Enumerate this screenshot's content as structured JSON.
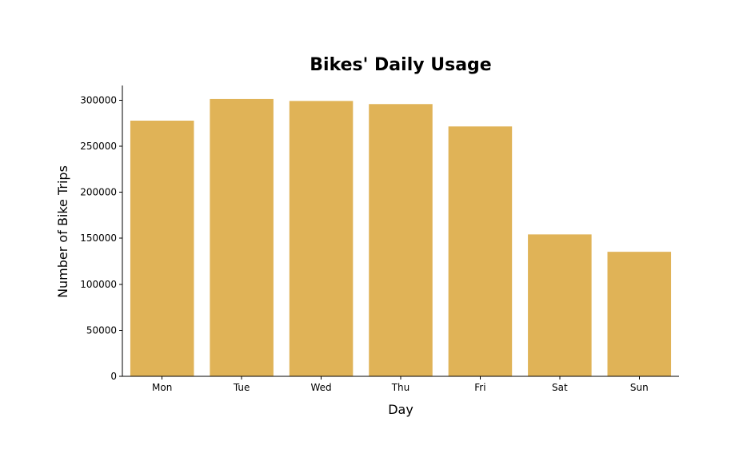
{
  "chart_data": {
    "type": "bar",
    "title": "Bikes' Daily Usage",
    "xlabel": "Day",
    "ylabel": "Number of Bike Trips",
    "categories": [
      "Mon",
      "Tue",
      "Wed",
      "Thu",
      "Fri",
      "Sat",
      "Sun"
    ],
    "values": [
      277800,
      301300,
      299200,
      295800,
      271500,
      154200,
      135300
    ],
    "ylim": [
      0,
      316000
    ],
    "yticks": [
      0,
      50000,
      100000,
      150000,
      200000,
      250000,
      300000
    ],
    "ytick_labels": [
      "0",
      "50000",
      "100000",
      "150000",
      "200000",
      "250000",
      "300000"
    ],
    "bar_color": "#e0b357",
    "grid": false,
    "legend": "none"
  }
}
